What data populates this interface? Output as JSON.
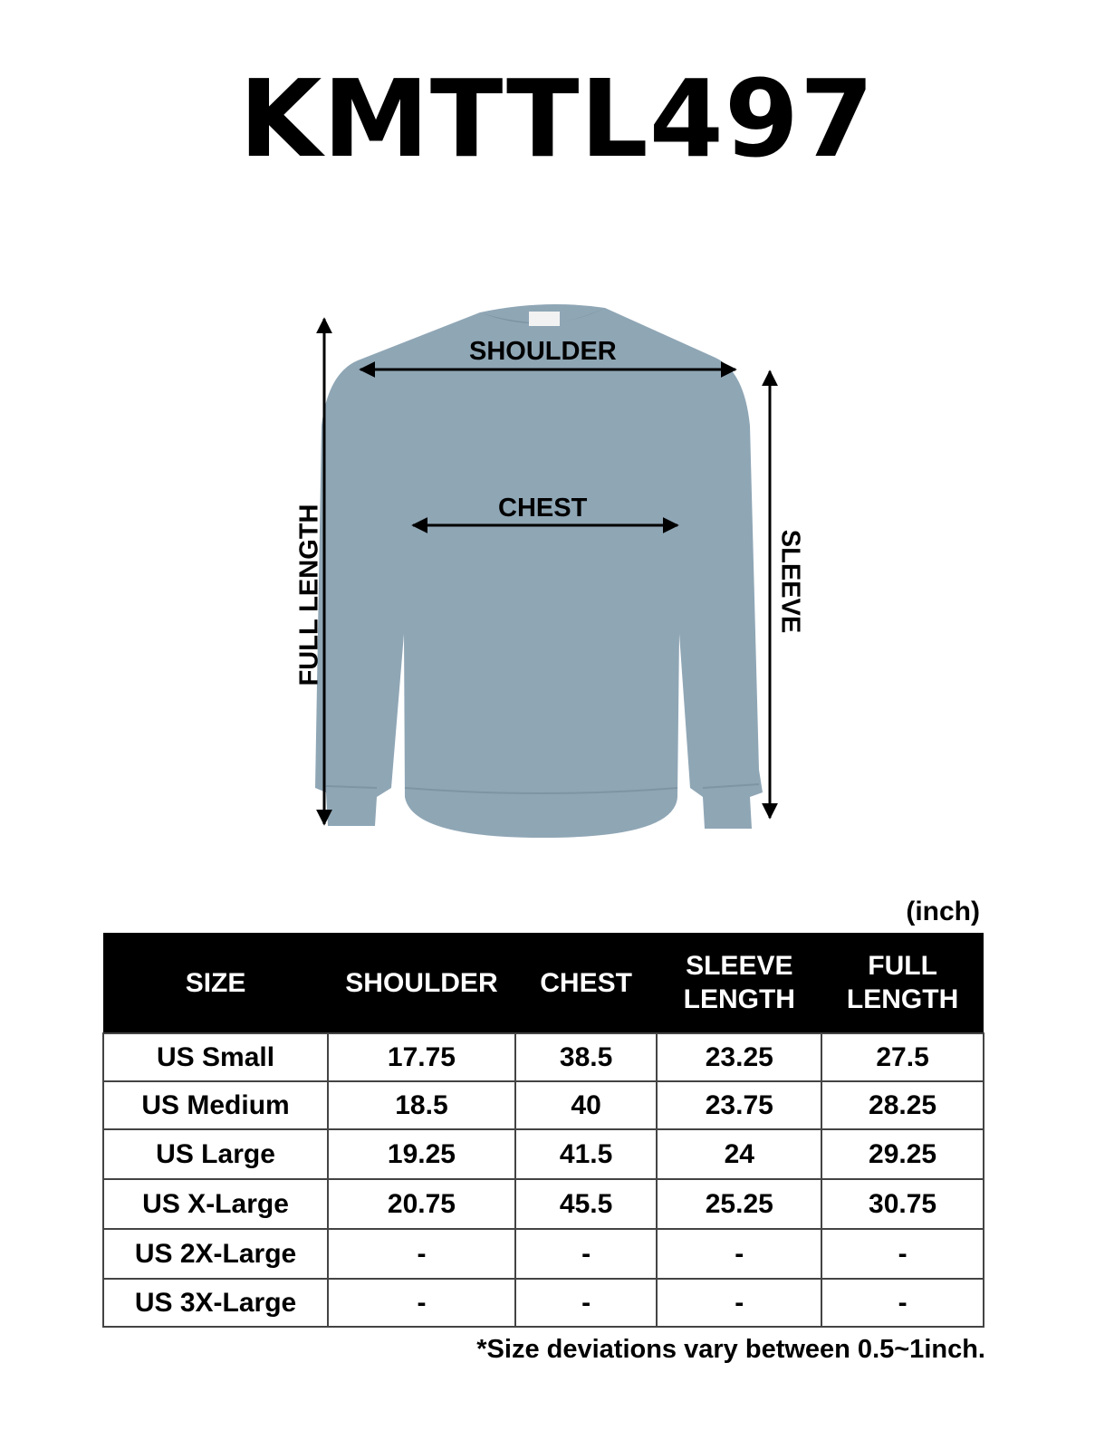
{
  "title": "KMTTL497",
  "garment_color": "#8fa6b5",
  "diagram": {
    "shoulder": "SHOULDER",
    "chest": "CHEST",
    "full_length": "FULL LENGTH",
    "sleeve": "SLEEVE"
  },
  "unit": "(inch)",
  "table": {
    "headers": [
      "SIZE",
      "SHOULDER",
      "CHEST",
      "SLEEVE LENGTH",
      "FULL LENGTH"
    ],
    "rows": [
      [
        "US Small",
        "17.75",
        "38.5",
        "23.25",
        "27.5"
      ],
      [
        "US Medium",
        "18.5",
        "40",
        "23.75",
        "28.25"
      ],
      [
        "US Large",
        "19.25",
        "41.5",
        "24",
        "29.25"
      ],
      [
        "US X-Large",
        "20.75",
        "45.5",
        "25.25",
        "30.75"
      ],
      [
        "US 2X-Large",
        "-",
        "-",
        "-",
        "-"
      ],
      [
        "US 3X-Large",
        "-",
        "-",
        "-",
        "-"
      ]
    ]
  },
  "note": "*Size deviations vary between 0.5~1inch."
}
